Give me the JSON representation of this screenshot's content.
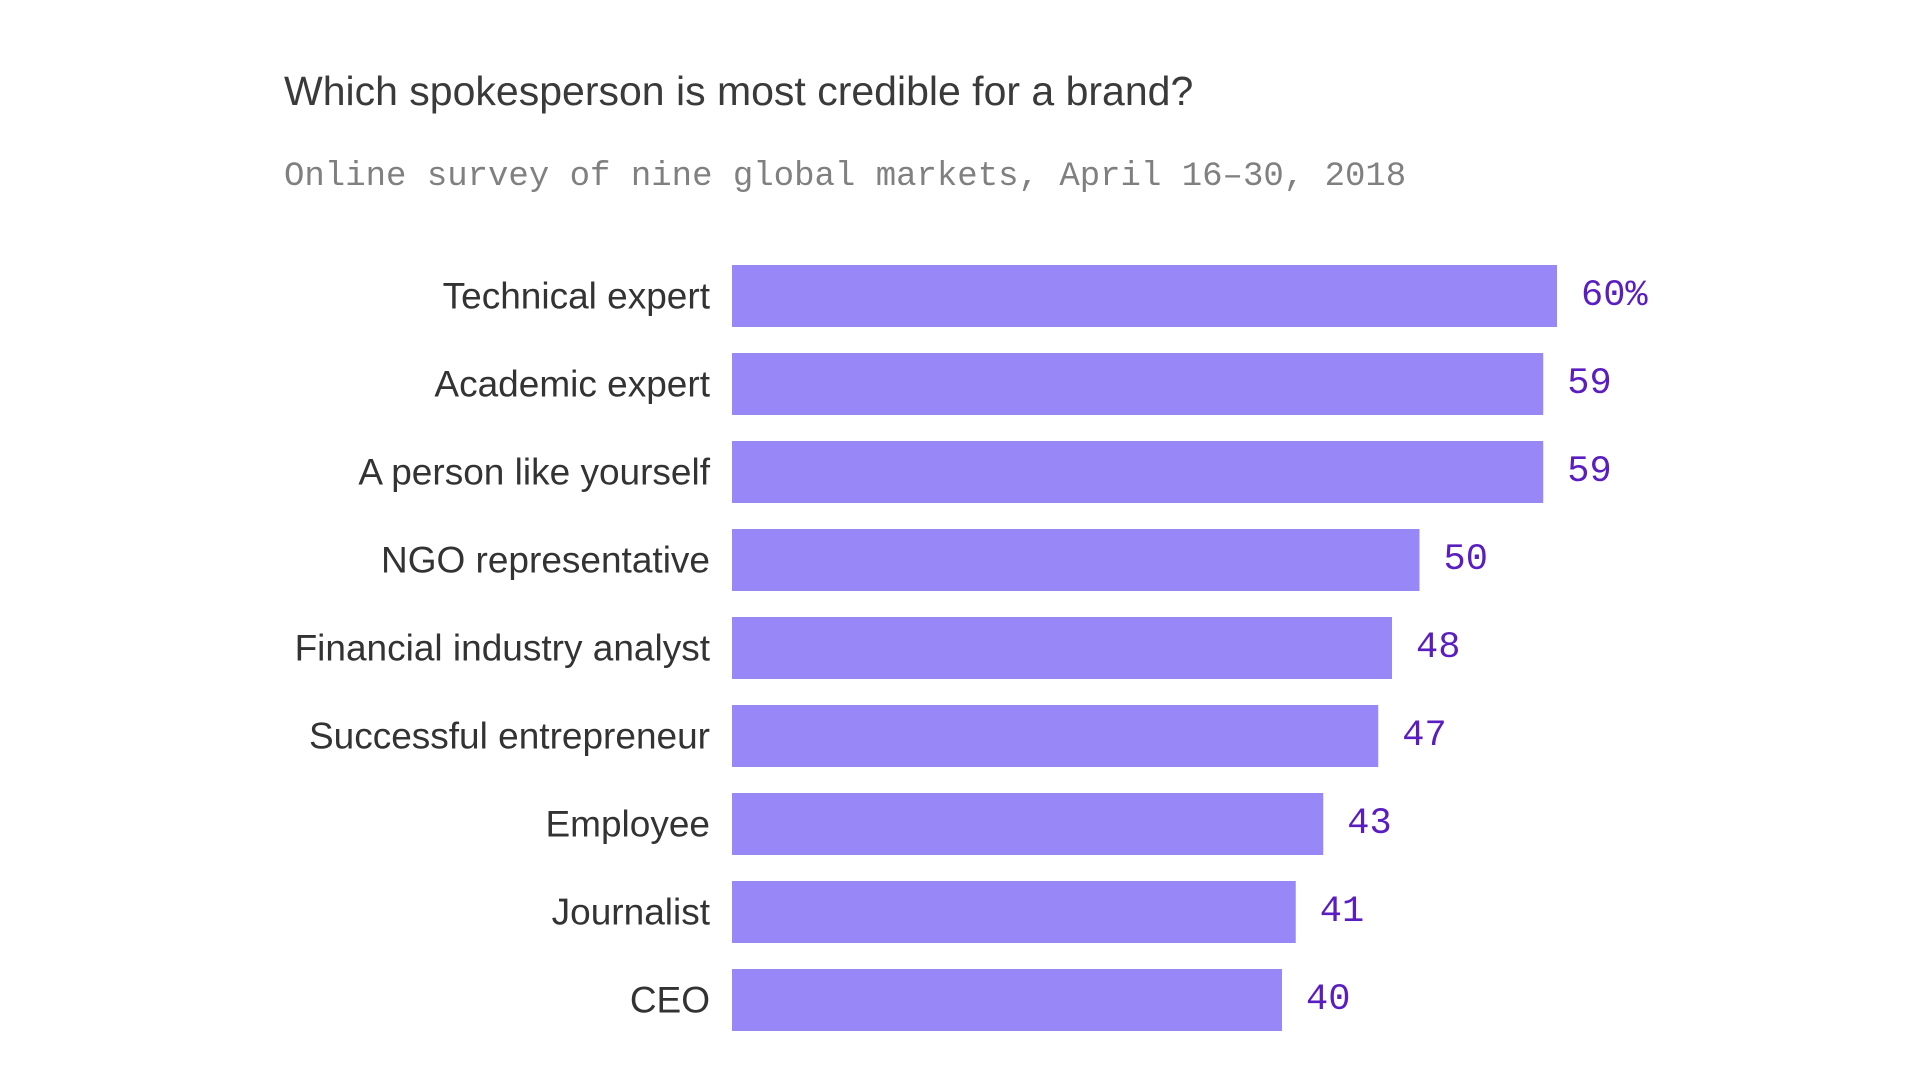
{
  "chart_data": {
    "type": "bar",
    "orientation": "horizontal",
    "title": "Which spokesperson is most credible for a brand?",
    "subtitle": "Online survey of nine global markets, April 16–30, 2018",
    "categories": [
      "Technical expert",
      "Academic expert",
      "A person like yourself",
      "NGO representative",
      "Financial industry analyst",
      "Successful entrepreneur",
      "Employee",
      "Journalist",
      "CEO"
    ],
    "values": [
      60,
      59,
      59,
      50,
      48,
      47,
      43,
      41,
      40
    ],
    "value_labels": [
      "60%",
      "59",
      "59",
      "50",
      "48",
      "47",
      "43",
      "41",
      "40"
    ],
    "xlim": [
      0,
      60
    ],
    "xlabel": "",
    "ylabel": "",
    "grid": false,
    "legend": "none"
  },
  "colors": {
    "bar": "#9787f7",
    "value_label": "#5a1dbf",
    "title": "#3a3a3a",
    "subtitle": "#808080",
    "category_label": "#333333"
  }
}
